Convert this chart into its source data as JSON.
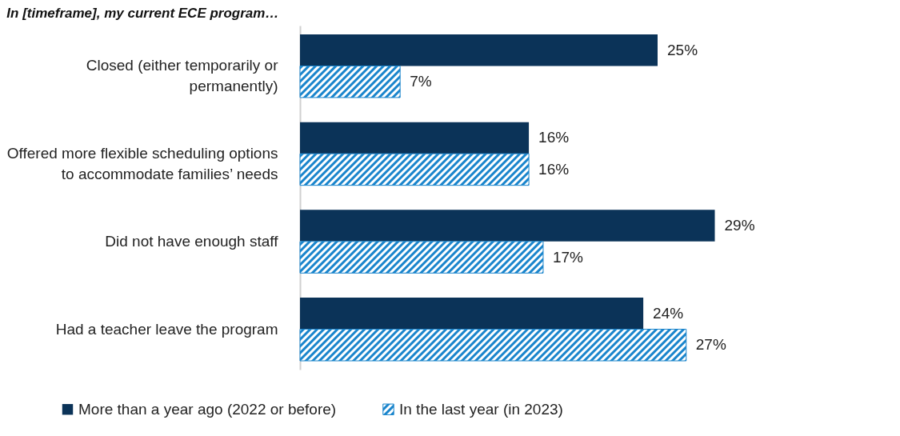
{
  "chart_data": {
    "type": "bar",
    "orientation": "horizontal",
    "title": "In [timeframe], my current ECE program…",
    "categories": [
      "Closed (either temporarily or permanently)",
      "Offered more flexible scheduling options to accommodate families’ needs",
      "Did not have enough staff",
      "Had a teacher leave the program"
    ],
    "series": [
      {
        "name": "More than a year ago (2022 or before)",
        "color": "#0b3358",
        "values": [
          25,
          16,
          29,
          24
        ],
        "value_labels": [
          "25%",
          "16%",
          "29%",
          "24%"
        ]
      },
      {
        "name": "In the last year (in 2023)",
        "color": "#1a85cc",
        "values": [
          7,
          16,
          17,
          27
        ],
        "value_labels": [
          "7%",
          "16%",
          "17%",
          "27%"
        ]
      }
    ],
    "legend": "bottom"
  }
}
